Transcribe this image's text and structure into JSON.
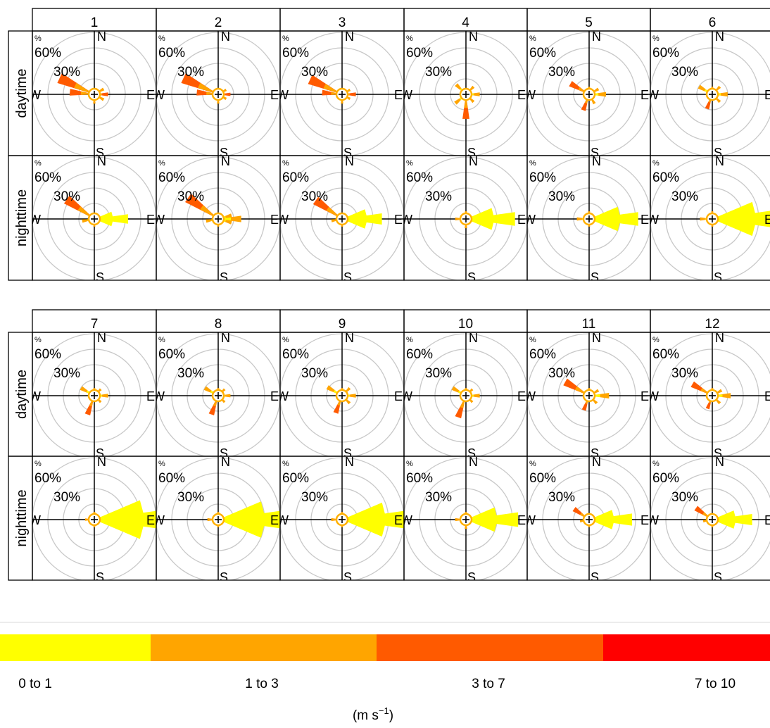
{
  "chart_data": {
    "type": "windrose",
    "title": "",
    "row_labels": [
      "daytime",
      "nighttime"
    ],
    "ring_labels": [
      "30%",
      "60%",
      "%"
    ],
    "direction_labels": {
      "north": "N",
      "south": "S",
      "east": "E",
      "west": "W"
    },
    "speed_legend": {
      "unit": "(m s",
      "unit_superscript": "−1",
      "unit_close": ")",
      "bins": [
        {
          "label": "0 to 1",
          "color": "#FFFF00"
        },
        {
          "label": "1 to 3",
          "color": "#FFA500"
        },
        {
          "label": "3 to 7",
          "color": "#FF5A00"
        },
        {
          "label": "7 to 10",
          "color": "#FF0000"
        }
      ]
    },
    "months": [
      {
        "label": "1",
        "daytime": [
          {
            "dir": 295,
            "pct": 25,
            "bin": 2
          },
          {
            "dir": 275,
            "pct": 16,
            "bin": 2
          },
          {
            "dir": 90,
            "pct": 9,
            "bin": 2
          },
          {
            "dir": 60,
            "pct": 7,
            "bin": 1
          },
          {
            "dir": 120,
            "pct": 7,
            "bin": 1
          },
          {
            "dir": 180,
            "pct": 6,
            "bin": 1
          }
        ],
        "nighttime": [
          {
            "dir": 90,
            "pct": 22,
            "bin": 0
          },
          {
            "dir": 75,
            "pct": 12,
            "bin": 0
          },
          {
            "dir": 105,
            "pct": 12,
            "bin": 0
          },
          {
            "dir": 305,
            "pct": 22,
            "bin": 2
          },
          {
            "dir": 260,
            "pct": 8,
            "bin": 1
          },
          {
            "dir": 180,
            "pct": 5,
            "bin": 1
          }
        ]
      },
      {
        "label": "2",
        "daytime": [
          {
            "dir": 295,
            "pct": 25,
            "bin": 2
          },
          {
            "dir": 275,
            "pct": 14,
            "bin": 2
          },
          {
            "dir": 90,
            "pct": 8,
            "bin": 2
          },
          {
            "dir": 60,
            "pct": 6,
            "bin": 1
          },
          {
            "dir": 120,
            "pct": 6,
            "bin": 1
          },
          {
            "dir": 180,
            "pct": 6,
            "bin": 1
          }
        ],
        "nighttime": [
          {
            "dir": 90,
            "pct": 15,
            "bin": 1
          },
          {
            "dir": 75,
            "pct": 9,
            "bin": 1
          },
          {
            "dir": 105,
            "pct": 9,
            "bin": 1
          },
          {
            "dir": 305,
            "pct": 24,
            "bin": 2
          },
          {
            "dir": 260,
            "pct": 8,
            "bin": 1
          },
          {
            "dir": 180,
            "pct": 5,
            "bin": 1
          }
        ]
      },
      {
        "label": "3",
        "daytime": [
          {
            "dir": 295,
            "pct": 23,
            "bin": 2
          },
          {
            "dir": 275,
            "pct": 13,
            "bin": 2
          },
          {
            "dir": 90,
            "pct": 9,
            "bin": 2
          },
          {
            "dir": 60,
            "pct": 6,
            "bin": 1
          },
          {
            "dir": 120,
            "pct": 6,
            "bin": 1
          },
          {
            "dir": 180,
            "pct": 6,
            "bin": 1
          }
        ],
        "nighttime": [
          {
            "dir": 90,
            "pct": 26,
            "bin": 0
          },
          {
            "dir": 75,
            "pct": 16,
            "bin": 0
          },
          {
            "dir": 105,
            "pct": 16,
            "bin": 0
          },
          {
            "dir": 305,
            "pct": 21,
            "bin": 2
          },
          {
            "dir": 260,
            "pct": 7,
            "bin": 1
          },
          {
            "dir": 180,
            "pct": 5,
            "bin": 1
          }
        ]
      },
      {
        "label": "4",
        "daytime": [
          {
            "dir": 180,
            "pct": 16,
            "bin": 2
          },
          {
            "dir": 315,
            "pct": 9,
            "bin": 1
          },
          {
            "dir": 230,
            "pct": 9,
            "bin": 1
          },
          {
            "dir": 90,
            "pct": 9,
            "bin": 1
          },
          {
            "dir": 45,
            "pct": 7,
            "bin": 1
          },
          {
            "dir": 135,
            "pct": 7,
            "bin": 1
          }
        ],
        "nighttime": [
          {
            "dir": 90,
            "pct": 32,
            "bin": 0
          },
          {
            "dir": 75,
            "pct": 18,
            "bin": 0
          },
          {
            "dir": 105,
            "pct": 18,
            "bin": 0
          },
          {
            "dir": 270,
            "pct": 7,
            "bin": 1
          },
          {
            "dir": 180,
            "pct": 6,
            "bin": 1
          },
          {
            "dir": 0,
            "pct": 5,
            "bin": 1
          }
        ]
      },
      {
        "label": "5",
        "daytime": [
          {
            "dir": 300,
            "pct": 14,
            "bin": 2
          },
          {
            "dir": 200,
            "pct": 11,
            "bin": 2
          },
          {
            "dir": 90,
            "pct": 11,
            "bin": 1
          },
          {
            "dir": 60,
            "pct": 7,
            "bin": 1
          },
          {
            "dir": 150,
            "pct": 7,
            "bin": 1
          },
          {
            "dir": 0,
            "pct": 5,
            "bin": 1
          }
        ],
        "nighttime": [
          {
            "dir": 90,
            "pct": 32,
            "bin": 0
          },
          {
            "dir": 75,
            "pct": 20,
            "bin": 0
          },
          {
            "dir": 105,
            "pct": 20,
            "bin": 0
          },
          {
            "dir": 270,
            "pct": 8,
            "bin": 1
          },
          {
            "dir": 180,
            "pct": 5,
            "bin": 1
          },
          {
            "dir": 0,
            "pct": 5,
            "bin": 1
          }
        ]
      },
      {
        "label": "6",
        "daytime": [
          {
            "dir": 300,
            "pct": 10,
            "bin": 1
          },
          {
            "dir": 200,
            "pct": 10,
            "bin": 2
          },
          {
            "dir": 90,
            "pct": 10,
            "bin": 1
          },
          {
            "dir": 45,
            "pct": 7,
            "bin": 1
          },
          {
            "dir": 135,
            "pct": 7,
            "bin": 1
          },
          {
            "dir": 0,
            "pct": 5,
            "bin": 1
          }
        ],
        "nighttime": [
          {
            "dir": 90,
            "pct": 42,
            "bin": 0
          },
          {
            "dir": 75,
            "pct": 28,
            "bin": 0
          },
          {
            "dir": 105,
            "pct": 28,
            "bin": 0
          },
          {
            "dir": 270,
            "pct": 8,
            "bin": 1
          },
          {
            "dir": 180,
            "pct": 5,
            "bin": 1
          },
          {
            "dir": 0,
            "pct": 5,
            "bin": 1
          }
        ]
      },
      {
        "label": "7",
        "daytime": [
          {
            "dir": 200,
            "pct": 13,
            "bin": 2
          },
          {
            "dir": 300,
            "pct": 10,
            "bin": 1
          },
          {
            "dir": 90,
            "pct": 9,
            "bin": 1
          },
          {
            "dir": 45,
            "pct": 6,
            "bin": 1
          },
          {
            "dir": 135,
            "pct": 6,
            "bin": 1
          },
          {
            "dir": 0,
            "pct": 5,
            "bin": 1
          }
        ],
        "nighttime": [
          {
            "dir": 90,
            "pct": 48,
            "bin": 0
          },
          {
            "dir": 75,
            "pct": 32,
            "bin": 0
          },
          {
            "dir": 105,
            "pct": 32,
            "bin": 0
          },
          {
            "dir": 270,
            "pct": 6,
            "bin": 1
          },
          {
            "dir": 180,
            "pct": 5,
            "bin": 1
          },
          {
            "dir": 0,
            "pct": 5,
            "bin": 1
          }
        ]
      },
      {
        "label": "8",
        "daytime": [
          {
            "dir": 200,
            "pct": 13,
            "bin": 2
          },
          {
            "dir": 300,
            "pct": 10,
            "bin": 1
          },
          {
            "dir": 90,
            "pct": 8,
            "bin": 1
          },
          {
            "dir": 45,
            "pct": 6,
            "bin": 1
          },
          {
            "dir": 135,
            "pct": 6,
            "bin": 1
          },
          {
            "dir": 0,
            "pct": 5,
            "bin": 1
          }
        ],
        "nighttime": [
          {
            "dir": 90,
            "pct": 46,
            "bin": 0
          },
          {
            "dir": 75,
            "pct": 30,
            "bin": 0
          },
          {
            "dir": 105,
            "pct": 30,
            "bin": 0
          },
          {
            "dir": 270,
            "pct": 7,
            "bin": 1
          },
          {
            "dir": 180,
            "pct": 5,
            "bin": 1
          },
          {
            "dir": 0,
            "pct": 5,
            "bin": 1
          }
        ]
      },
      {
        "label": "9",
        "daytime": [
          {
            "dir": 200,
            "pct": 12,
            "bin": 2
          },
          {
            "dir": 300,
            "pct": 11,
            "bin": 1
          },
          {
            "dir": 90,
            "pct": 9,
            "bin": 1
          },
          {
            "dir": 45,
            "pct": 7,
            "bin": 1
          },
          {
            "dir": 135,
            "pct": 7,
            "bin": 1
          },
          {
            "dir": 0,
            "pct": 5,
            "bin": 1
          }
        ],
        "nighttime": [
          {
            "dir": 90,
            "pct": 42,
            "bin": 0
          },
          {
            "dir": 75,
            "pct": 28,
            "bin": 0
          },
          {
            "dir": 105,
            "pct": 28,
            "bin": 0
          },
          {
            "dir": 270,
            "pct": 7,
            "bin": 1
          },
          {
            "dir": 180,
            "pct": 5,
            "bin": 1
          },
          {
            "dir": 0,
            "pct": 5,
            "bin": 1
          }
        ]
      },
      {
        "label": "10",
        "daytime": [
          {
            "dir": 200,
            "pct": 15,
            "bin": 2
          },
          {
            "dir": 300,
            "pct": 10,
            "bin": 1
          },
          {
            "dir": 90,
            "pct": 9,
            "bin": 1
          },
          {
            "dir": 45,
            "pct": 6,
            "bin": 1
          },
          {
            "dir": 135,
            "pct": 6,
            "bin": 1
          },
          {
            "dir": 0,
            "pct": 5,
            "bin": 1
          }
        ],
        "nighttime": [
          {
            "dir": 90,
            "pct": 34,
            "bin": 0
          },
          {
            "dir": 75,
            "pct": 20,
            "bin": 0
          },
          {
            "dir": 105,
            "pct": 20,
            "bin": 0
          },
          {
            "dir": 270,
            "pct": 7,
            "bin": 1
          },
          {
            "dir": 180,
            "pct": 6,
            "bin": 1
          },
          {
            "dir": 0,
            "pct": 5,
            "bin": 1
          }
        ]
      },
      {
        "label": "11",
        "daytime": [
          {
            "dir": 300,
            "pct": 18,
            "bin": 2
          },
          {
            "dir": 200,
            "pct": 10,
            "bin": 2
          },
          {
            "dir": 90,
            "pct": 13,
            "bin": 1
          },
          {
            "dir": 60,
            "pct": 7,
            "bin": 1
          },
          {
            "dir": 135,
            "pct": 7,
            "bin": 1
          },
          {
            "dir": 0,
            "pct": 5,
            "bin": 1
          }
        ],
        "nighttime": [
          {
            "dir": 90,
            "pct": 28,
            "bin": 0
          },
          {
            "dir": 75,
            "pct": 16,
            "bin": 0
          },
          {
            "dir": 105,
            "pct": 16,
            "bin": 0
          },
          {
            "dir": 305,
            "pct": 12,
            "bin": 2
          },
          {
            "dir": 260,
            "pct": 6,
            "bin": 1
          },
          {
            "dir": 180,
            "pct": 5,
            "bin": 1
          }
        ]
      },
      {
        "label": "12",
        "daytime": [
          {
            "dir": 300,
            "pct": 15,
            "bin": 2
          },
          {
            "dir": 200,
            "pct": 9,
            "bin": 2
          },
          {
            "dir": 90,
            "pct": 12,
            "bin": 1
          },
          {
            "dir": 60,
            "pct": 7,
            "bin": 1
          },
          {
            "dir": 135,
            "pct": 7,
            "bin": 1
          },
          {
            "dir": 0,
            "pct": 5,
            "bin": 1
          }
        ],
        "nighttime": [
          {
            "dir": 90,
            "pct": 26,
            "bin": 0
          },
          {
            "dir": 75,
            "pct": 15,
            "bin": 0
          },
          {
            "dir": 105,
            "pct": 15,
            "bin": 0
          },
          {
            "dir": 305,
            "pct": 13,
            "bin": 2
          },
          {
            "dir": 260,
            "pct": 6,
            "bin": 1
          },
          {
            "dir": 180,
            "pct": 5,
            "bin": 1
          }
        ]
      }
    ]
  }
}
